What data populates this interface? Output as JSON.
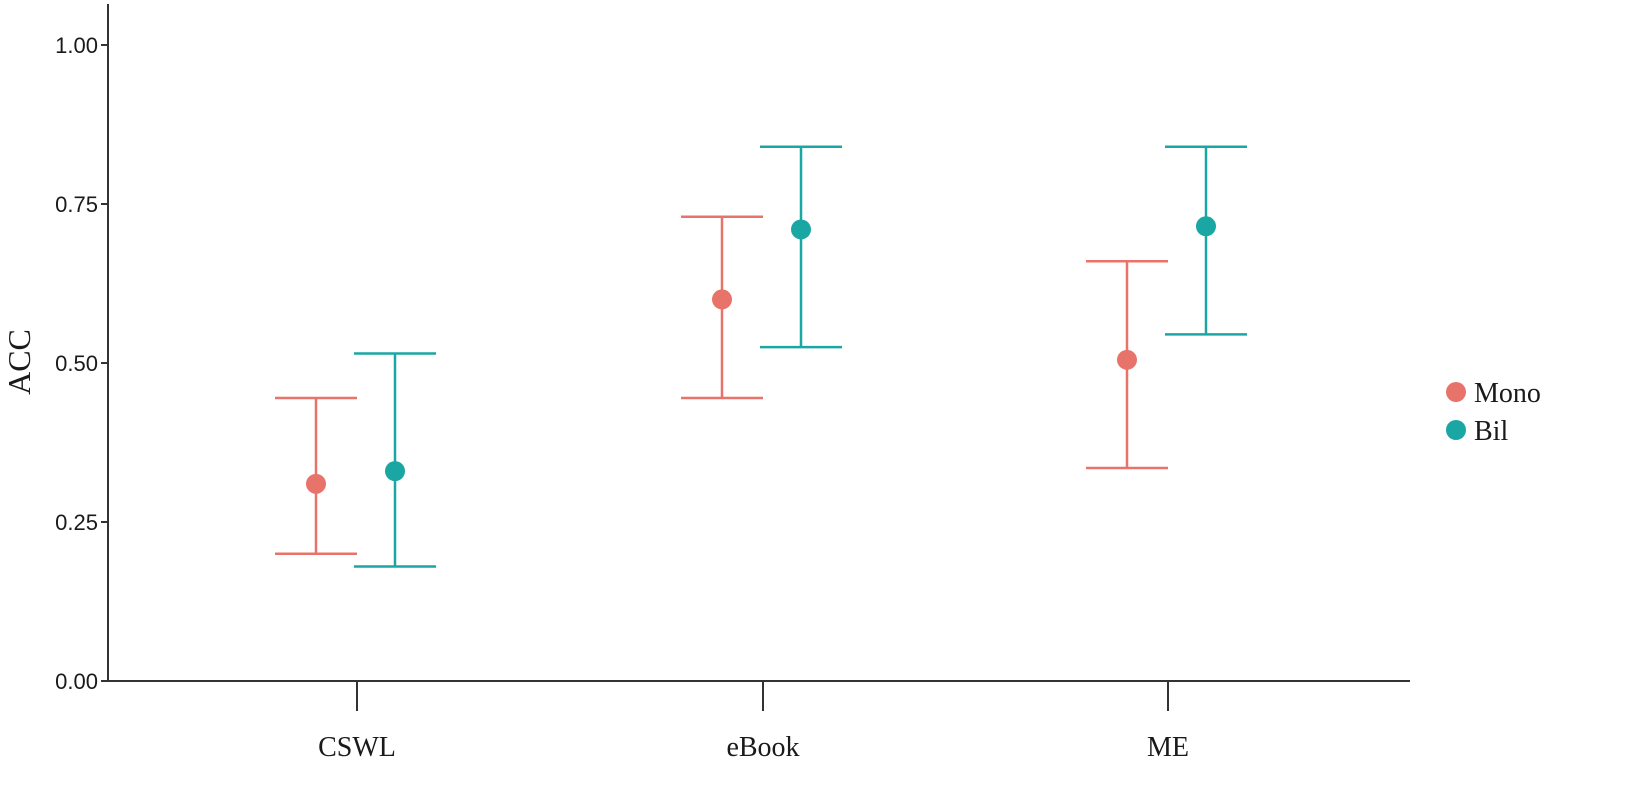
{
  "chart_data": {
    "type": "scatter",
    "subtype": "point-with-error-bars",
    "categories": [
      "CSWL",
      "eBook",
      "ME"
    ],
    "ylabel": "ACC",
    "xlabel": "",
    "ylim": [
      0,
      1.05
    ],
    "yticks": [
      0.0,
      0.25,
      0.5,
      0.75,
      1.0
    ],
    "ytick_labels": [
      "0.00",
      "0.25",
      "0.50",
      "0.75",
      "1.00"
    ],
    "grid": false,
    "legend_position": "right",
    "series": [
      {
        "name": "Mono",
        "color": "#E8736A",
        "values": [
          0.31,
          0.6,
          0.505
        ],
        "lower": [
          0.2,
          0.445,
          0.335
        ],
        "upper": [
          0.445,
          0.73,
          0.66
        ]
      },
      {
        "name": "Bil",
        "color": "#1AA7A4",
        "values": [
          0.33,
          0.71,
          0.715
        ],
        "lower": [
          0.18,
          0.525,
          0.545
        ],
        "upper": [
          0.515,
          0.84,
          0.84
        ]
      }
    ]
  }
}
